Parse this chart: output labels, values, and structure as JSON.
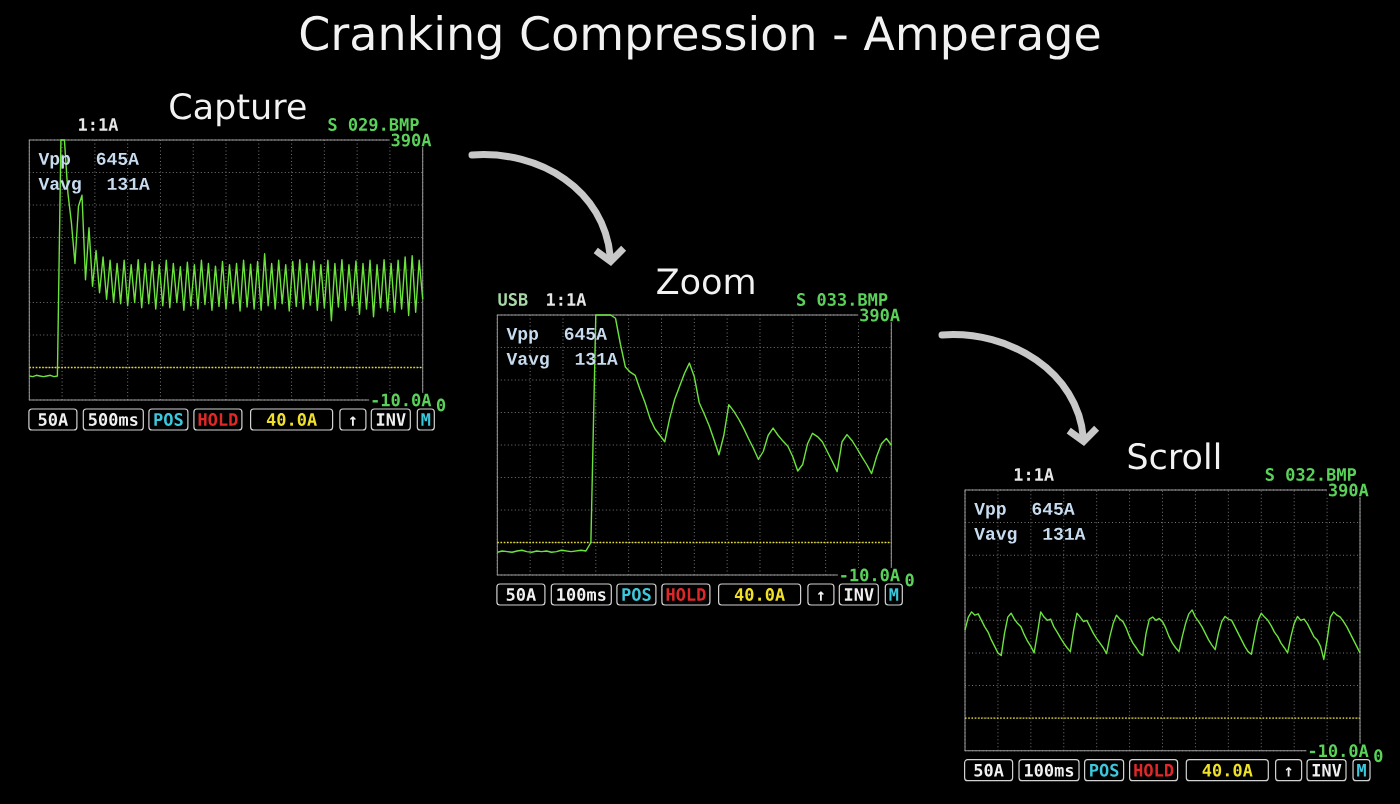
{
  "chart_data": [
    {
      "type": "line",
      "title": "Cranking Compression - Amperage",
      "subtitle": "Capture",
      "categories": [
        null,
        null,
        null,
        null,
        null,
        null,
        null,
        null,
        null,
        null,
        null,
        null,
        null,
        null,
        null,
        null,
        null,
        null,
        null,
        null,
        null,
        null,
        null,
        null,
        null,
        null,
        null,
        null,
        null,
        null,
        null,
        null,
        null,
        null,
        null,
        null,
        null,
        null,
        null,
        null,
        null,
        null,
        null,
        null,
        null,
        null,
        null,
        null,
        null,
        null,
        null,
        null,
        null,
        null,
        null,
        null,
        null,
        null,
        null,
        null,
        null,
        null,
        null,
        null,
        null,
        null,
        null,
        null,
        null,
        null,
        null,
        null,
        null,
        null,
        null,
        null,
        null,
        null,
        null,
        null,
        null,
        null,
        null,
        null,
        null,
        null,
        null,
        null,
        null,
        null,
        null,
        null,
        null,
        null,
        null,
        null,
        null,
        null,
        null,
        null,
        null,
        null,
        null,
        null,
        null,
        null,
        null,
        null,
        null,
        null,
        null,
        null,
        null
      ],
      "values": [
        27,
        26,
        28,
        27,
        26,
        27,
        28,
        26,
        27,
        390,
        390,
        308,
        262,
        200,
        288,
        305,
        175,
        255,
        165,
        220,
        155,
        210,
        145,
        205,
        140,
        200,
        138,
        205,
        135,
        198,
        140,
        206,
        132,
        200,
        138,
        203,
        130,
        198,
        135,
        205,
        132,
        200,
        140,
        195,
        128,
        202,
        135,
        198,
        130,
        205,
        137,
        200,
        128,
        196,
        134,
        203,
        130,
        198,
        138,
        200,
        127,
        205,
        133,
        199,
        130,
        203,
        128,
        215,
        135,
        200,
        130,
        205,
        138,
        198,
        127,
        203,
        134,
        206,
        130,
        200,
        136,
        204,
        128,
        198,
        132,
        205,
        112,
        200,
        133,
        206,
        128,
        198,
        135,
        204,
        122,
        200,
        130,
        205,
        118,
        198,
        132,
        206,
        127,
        200,
        125,
        205,
        130,
        210,
        120,
        212,
        125,
        205,
        145
      ],
      "color": "#6be33c",
      "ylim": [
        -10,
        390
      ],
      "yticks": [
        {
          "value": -10,
          "label": "-10.0A"
        },
        {
          "value": 40,
          "label": null
        },
        {
          "value": 90,
          "label": null
        },
        {
          "value": 140,
          "label": null
        },
        {
          "value": 190,
          "label": null
        },
        {
          "value": 240,
          "label": null
        },
        {
          "value": 290,
          "label": null
        },
        {
          "value": 340,
          "label": null
        },
        {
          "value": 390,
          "label": "390A"
        }
      ],
      "grid": true,
      "tick_labels": "y",
      "ref_lines": [
        {
          "axis": "y",
          "value": 40,
          "color": "#e6dc2a",
          "line_style": "dotted"
        }
      ],
      "annotations": [
        "1:1A",
        "S 029.BMP",
        "Vpp 645A",
        "Vavg 131A",
        "50A",
        "500ms",
        "POS",
        "HOLD",
        "40.0A",
        "↑",
        "INV",
        "M",
        "0"
      ]
    },
    {
      "type": "line",
      "title": "Zoom",
      "categories": [
        null,
        null,
        null,
        null,
        null,
        null,
        null,
        null,
        null,
        null,
        null,
        null,
        null,
        null,
        null,
        null,
        null,
        null,
        null,
        null,
        null,
        null,
        null,
        null,
        null,
        null,
        null,
        null,
        null,
        null,
        null,
        null,
        null,
        null,
        null,
        null,
        null,
        null,
        null,
        null,
        null,
        null,
        null,
        null,
        null,
        null,
        null,
        null,
        null,
        null,
        null,
        null,
        null,
        null,
        null,
        null,
        null,
        null,
        null,
        null,
        null,
        null,
        null,
        null,
        null,
        null,
        null,
        null,
        null,
        null,
        null,
        null,
        null,
        null,
        null,
        null,
        null,
        null,
        null,
        null,
        null
      ],
      "values": [
        25,
        27,
        26,
        25,
        27,
        28,
        26,
        25,
        27,
        26,
        27,
        25,
        26,
        28,
        27,
        26,
        27,
        28,
        27,
        40,
        390,
        390,
        390,
        390,
        385,
        345,
        310,
        302,
        297,
        275,
        255,
        231,
        215,
        205,
        195,
        231,
        260,
        280,
        300,
        316,
        295,
        255,
        238,
        220,
        198,
        175,
        205,
        252,
        242,
        230,
        216,
        200,
        185,
        168,
        180,
        205,
        216,
        205,
        196,
        188,
        172,
        150,
        160,
        192,
        208,
        203,
        195,
        180,
        165,
        149,
        195,
        206,
        197,
        185,
        172,
        160,
        146,
        172,
        192,
        200,
        190
      ],
      "color": "#6be33c",
      "ylim": [
        -10,
        390
      ],
      "yticks": [
        {
          "value": -10,
          "label": "-10.0A"
        },
        {
          "value": 40,
          "label": null
        },
        {
          "value": 90,
          "label": null
        },
        {
          "value": 140,
          "label": null
        },
        {
          "value": 190,
          "label": null
        },
        {
          "value": 240,
          "label": null
        },
        {
          "value": 290,
          "label": null
        },
        {
          "value": 340,
          "label": null
        },
        {
          "value": 390,
          "label": "390A"
        }
      ],
      "grid": true,
      "tick_labels": "y",
      "ref_lines": [
        {
          "axis": "y",
          "value": 40,
          "color": "#e6dc2a",
          "line_style": "dotted"
        }
      ],
      "annotations": [
        "1:1A",
        "S 033.BMP",
        "Vpp 645A",
        "Vavg 131A",
        "50A",
        "100ms",
        "POS",
        "HOLD",
        "40.0A",
        "↑",
        "INV",
        "M",
        "0",
        "USB"
      ]
    },
    {
      "type": "line",
      "title": "Scroll",
      "categories": [
        null,
        null,
        null,
        null,
        null,
        null,
        null,
        null,
        null,
        null,
        null,
        null,
        null,
        null,
        null,
        null,
        null,
        null,
        null,
        null,
        null,
        null,
        null,
        null,
        null,
        null,
        null,
        null,
        null,
        null,
        null,
        null,
        null,
        null,
        null,
        null,
        null,
        null,
        null,
        null,
        null,
        null,
        null,
        null,
        null,
        null,
        null,
        null,
        null,
        null,
        null,
        null,
        null,
        null,
        null,
        null,
        null,
        null,
        null,
        null,
        null,
        null,
        null,
        null,
        null,
        null,
        null,
        null,
        null,
        null,
        null,
        null,
        null,
        null,
        null,
        null,
        null,
        null,
        null,
        null,
        null,
        null,
        null,
        null,
        null,
        null,
        null,
        null,
        null,
        null,
        null,
        null,
        null,
        null,
        null,
        null,
        null,
        null,
        null,
        null,
        null,
        null,
        null,
        null,
        null,
        null,
        null,
        null,
        null,
        null,
        null,
        null,
        null,
        null,
        null,
        null,
        null,
        null,
        null,
        null,
        null
      ],
      "values": [
        175,
        195,
        203,
        198,
        200,
        190,
        180,
        172,
        160,
        150,
        140,
        136,
        170,
        195,
        201,
        192,
        185,
        180,
        168,
        158,
        150,
        140,
        170,
        203,
        195,
        190,
        192,
        180,
        172,
        163,
        155,
        148,
        142,
        175,
        201,
        195,
        188,
        190,
        180,
        170,
        162,
        155,
        148,
        139,
        165,
        185,
        198,
        192,
        188,
        178,
        165,
        155,
        148,
        140,
        136,
        170,
        192,
        195,
        190,
        193,
        188,
        178,
        165,
        155,
        148,
        142,
        165,
        185,
        200,
        206,
        195,
        188,
        180,
        170,
        160,
        152,
        145,
        170,
        188,
        196,
        192,
        190,
        180,
        170,
        160,
        150,
        142,
        138,
        165,
        190,
        201,
        195,
        190,
        182,
        172,
        165,
        155,
        148,
        140,
        165,
        185,
        196,
        190,
        192,
        185,
        175,
        165,
        160,
        150,
        130,
        160,
        195,
        203,
        198,
        195,
        188,
        180,
        170,
        160,
        150,
        140
      ],
      "color": "#6be33c",
      "ylim": [
        -10,
        390
      ],
      "yticks": [
        {
          "value": -10,
          "label": "-10.0A"
        },
        {
          "value": 40,
          "label": null
        },
        {
          "value": 90,
          "label": null
        },
        {
          "value": 140,
          "label": null
        },
        {
          "value": 190,
          "label": null
        },
        {
          "value": 240,
          "label": null
        },
        {
          "value": 290,
          "label": null
        },
        {
          "value": 340,
          "label": null
        },
        {
          "value": 390,
          "label": "390A"
        }
      ],
      "grid": true,
      "tick_labels": "y",
      "ref_lines": [
        {
          "axis": "y",
          "value": 40,
          "color": "#e6dc2a",
          "line_style": "dotted"
        }
      ],
      "annotations": [
        "1:1A",
        "S 032.BMP",
        "Vpp 645A",
        "Vavg 131A",
        "50A",
        "100ms",
        "POS",
        "HOLD",
        "40.0A",
        "↑",
        "INV",
        "M",
        "0"
      ]
    }
  ]
}
